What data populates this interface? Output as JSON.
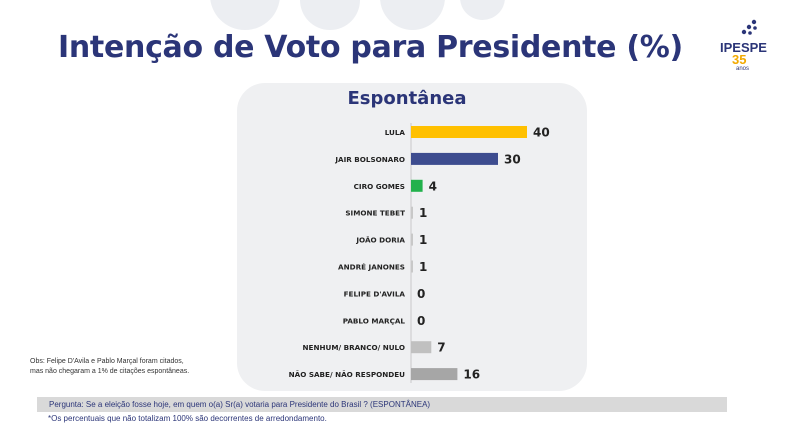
{
  "header": {
    "title": "Intenção de Voto para Presidente (%)",
    "logo": {
      "name": "IPESPE",
      "years": "35",
      "years_label": "anos"
    }
  },
  "chart_data": {
    "type": "bar",
    "orientation": "horizontal",
    "title": "Espontânea",
    "categories": [
      "LULA",
      "JAIR BOLSONARO",
      "CIRO GOMES",
      "SIMONE TEBET",
      "JOÃO DORIA",
      "ANDRÉ JANONES",
      "FELIPE D'AVILA",
      "PABLO MARÇAL",
      "NENHUM/ BRANCO/ NULO",
      "NÃO SABE/ NÃO RESPONDEU"
    ],
    "values": [
      40,
      30,
      4,
      1,
      1,
      1,
      0,
      0,
      7,
      16
    ],
    "colors": [
      "#ffc000",
      "#3d4c8f",
      "#22b14c",
      "#c8c8c8",
      "#c8c8c8",
      "#c8c8c8",
      "#c8c8c8",
      "#c8c8c8",
      "#c0c0c0",
      "#a6a6a6"
    ],
    "xlim": [
      0,
      40
    ],
    "grid": false
  },
  "notes": {
    "obs_line1": "Obs: Felipe D'Avila e Pablo Marçal foram citados,",
    "obs_line2": "mas não chegaram a 1% de citações espontâneas.",
    "question": "Pergunta:  Se a eleição fosse hoje, em quem o(a) Sr(a) votaria para  Presidente do Brasil ? (ESPONTÂNEA)",
    "footnote": "*Os percentuais que não totalizam 100% são decorrentes de arredondamento."
  }
}
